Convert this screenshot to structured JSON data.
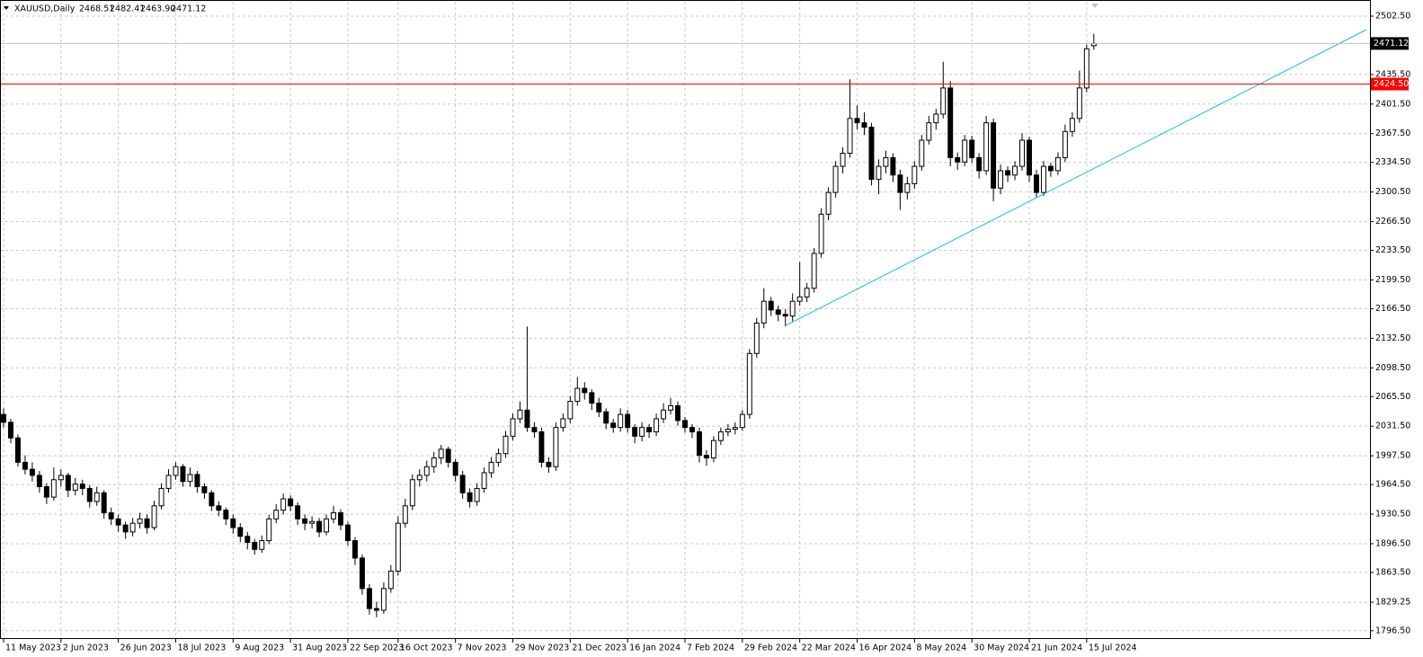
{
  "chart_data": {
    "type": "candlestick",
    "header": {
      "symbol": "XAUUSD,Daily",
      "ohlc": [
        "2468.51",
        "2482.41",
        "2463.90",
        "2471.12"
      ]
    },
    "bull_color": "#ffffff",
    "bear_color": "#000000",
    "outline_color": "#000000",
    "grid": true,
    "xlim": [
      -0.5,
      190.5
    ],
    "xticks": [
      {
        "value": 0,
        "label": "11 May 2023"
      },
      {
        "value": 8,
        "label": "2 Jun 2023"
      },
      {
        "value": 16,
        "label": "26 Jun 2023"
      },
      {
        "value": 24,
        "label": "18 Jul 2023"
      },
      {
        "value": 32,
        "label": "9 Aug 2023"
      },
      {
        "value": 40,
        "label": "31 Aug 2023"
      },
      {
        "value": 48,
        "label": "22 Sep 2023"
      },
      {
        "value": 55,
        "label": "16 Oct 2023"
      },
      {
        "value": 63,
        "label": "7 Nov 2023"
      },
      {
        "value": 71,
        "label": "29 Nov 2023"
      },
      {
        "value": 79,
        "label": "21 Dec 2023"
      },
      {
        "value": 87,
        "label": "16 Jan 2024"
      },
      {
        "value": 95,
        "label": "7 Feb 2024"
      },
      {
        "value": 103,
        "label": "29 Feb 2024"
      },
      {
        "value": 111,
        "label": "22 Mar 2024"
      },
      {
        "value": 119,
        "label": "16 Apr 2024"
      },
      {
        "value": 127,
        "label": "8 May 2024"
      },
      {
        "value": 135,
        "label": "30 May 2024"
      },
      {
        "value": 143,
        "label": "21 Jun 2024"
      },
      {
        "value": 151,
        "label": "15 Jul 2024"
      }
    ],
    "ylim": [
      1787,
      2519
    ],
    "yticks": [
      {
        "value": 2502.5,
        "label": "2502.50"
      },
      {
        "value": 2435.5,
        "label": "2435.50"
      },
      {
        "value": 2401.5,
        "label": "2401.50"
      },
      {
        "value": 2367.5,
        "label": "2367.50"
      },
      {
        "value": 2334.5,
        "label": "2334.50"
      },
      {
        "value": 2300.5,
        "label": "2300.50"
      },
      {
        "value": 2266.5,
        "label": "2266.50"
      },
      {
        "value": 2233.5,
        "label": "2233.50"
      },
      {
        "value": 2199.5,
        "label": "2199.50"
      },
      {
        "value": 2166.5,
        "label": "2166.50"
      },
      {
        "value": 2132.5,
        "label": "2132.50"
      },
      {
        "value": 2098.5,
        "label": "2098.50"
      },
      {
        "value": 2065.5,
        "label": "2065.50"
      },
      {
        "value": 2031.5,
        "label": "2031.50"
      },
      {
        "value": 1997.5,
        "label": "1997.50"
      },
      {
        "value": 1964.5,
        "label": "1964.50"
      },
      {
        "value": 1930.5,
        "label": "1930.50"
      },
      {
        "value": 1896.5,
        "label": "1896.50"
      },
      {
        "value": 1863.5,
        "label": "1863.50"
      },
      {
        "value": 1829.25,
        "label": "1829.25"
      },
      {
        "value": 1796.5,
        "label": "1796.50"
      }
    ],
    "levels": [
      {
        "value": 2424.5,
        "label": "2424.50",
        "color": "#ff0000"
      }
    ],
    "last_price": {
      "value": 2471.12,
      "label": "2471.12",
      "color": "#c0c0c0"
    },
    "trendline": {
      "x": [
        109,
        190
      ],
      "y": [
        2147,
        2487
      ],
      "color": "#1eb4f0"
    },
    "candles": [
      [
        2045,
        2052,
        2030,
        2036
      ],
      [
        2036,
        2040,
        2012,
        2018
      ],
      [
        2018,
        2022,
        1985,
        1990
      ],
      [
        1990,
        1998,
        1976,
        1982
      ],
      [
        1982,
        1990,
        1968,
        1975
      ],
      [
        1975,
        1980,
        1955,
        1962
      ],
      [
        1962,
        1966,
        1942,
        1950
      ],
      [
        1950,
        1984,
        1946,
        1970
      ],
      [
        1970,
        1982,
        1962,
        1975
      ],
      [
        1975,
        1978,
        1950,
        1958
      ],
      [
        1958,
        1972,
        1952,
        1965
      ],
      [
        1965,
        1970,
        1952,
        1960
      ],
      [
        1960,
        1964,
        1938,
        1945
      ],
      [
        1945,
        1962,
        1940,
        1955
      ],
      [
        1955,
        1958,
        1925,
        1932
      ],
      [
        1932,
        1938,
        1918,
        1925
      ],
      [
        1925,
        1930,
        1910,
        1918
      ],
      [
        1918,
        1922,
        1902,
        1910
      ],
      [
        1910,
        1926,
        1905,
        1920
      ],
      [
        1920,
        1932,
        1914,
        1925
      ],
      [
        1925,
        1930,
        1908,
        1915
      ],
      [
        1915,
        1946,
        1912,
        1940
      ],
      [
        1940,
        1966,
        1936,
        1960
      ],
      [
        1960,
        1982,
        1955,
        1975
      ],
      [
        1975,
        1990,
        1970,
        1985
      ],
      [
        1985,
        1988,
        1962,
        1968
      ],
      [
        1968,
        1984,
        1962,
        1976
      ],
      [
        1976,
        1980,
        1955,
        1962
      ],
      [
        1962,
        1966,
        1948,
        1955
      ],
      [
        1955,
        1958,
        1934,
        1940
      ],
      [
        1940,
        1945,
        1928,
        1935
      ],
      [
        1935,
        1938,
        1918,
        1925
      ],
      [
        1925,
        1930,
        1908,
        1915
      ],
      [
        1915,
        1920,
        1898,
        1905
      ],
      [
        1905,
        1910,
        1890,
        1898
      ],
      [
        1898,
        1902,
        1884,
        1890
      ],
      [
        1890,
        1906,
        1886,
        1900
      ],
      [
        1900,
        1930,
        1896,
        1925
      ],
      [
        1925,
        1942,
        1920,
        1935
      ],
      [
        1935,
        1954,
        1930,
        1948
      ],
      [
        1948,
        1952,
        1934,
        1940
      ],
      [
        1940,
        1944,
        1918,
        1925
      ],
      [
        1925,
        1930,
        1912,
        1920
      ],
      [
        1920,
        1928,
        1914,
        1922
      ],
      [
        1922,
        1926,
        1904,
        1910
      ],
      [
        1910,
        1930,
        1906,
        1925
      ],
      [
        1925,
        1940,
        1920,
        1932
      ],
      [
        1932,
        1936,
        1912,
        1918
      ],
      [
        1918,
        1922,
        1894,
        1900
      ],
      [
        1900,
        1904,
        1872,
        1880
      ],
      [
        1880,
        1884,
        1838,
        1845
      ],
      [
        1845,
        1850,
        1815,
        1822
      ],
      [
        1822,
        1830,
        1812,
        1820
      ],
      [
        1820,
        1852,
        1816,
        1845
      ],
      [
        1845,
        1872,
        1840,
        1865
      ],
      [
        1865,
        1928,
        1860,
        1920
      ],
      [
        1920,
        1948,
        1915,
        1940
      ],
      [
        1940,
        1976,
        1935,
        1970
      ],
      [
        1970,
        1982,
        1962,
        1975
      ],
      [
        1975,
        1992,
        1968,
        1985
      ],
      [
        1985,
        2002,
        1978,
        1995
      ],
      [
        1995,
        2010,
        1988,
        2005
      ],
      [
        2005,
        2008,
        1984,
        1990
      ],
      [
        1990,
        1994,
        1968,
        1975
      ],
      [
        1975,
        1980,
        1948,
        1955
      ],
      [
        1955,
        1960,
        1938,
        1945
      ],
      [
        1945,
        1966,
        1940,
        1960
      ],
      [
        1960,
        1984,
        1955,
        1978
      ],
      [
        1978,
        1996,
        1972,
        1990
      ],
      [
        1990,
        2006,
        1985,
        2000
      ],
      [
        2000,
        2026,
        1995,
        2020
      ],
      [
        2020,
        2046,
        2015,
        2040
      ],
      [
        2040,
        2060,
        2035,
        2050
      ],
      [
        2050,
        2146,
        2025,
        2030
      ],
      [
        2030,
        2036,
        2018,
        2025
      ],
      [
        2025,
        2030,
        1984,
        1990
      ],
      [
        1990,
        1996,
        1978,
        1985
      ],
      [
        1985,
        2036,
        1980,
        2030
      ],
      [
        2030,
        2046,
        2025,
        2040
      ],
      [
        2040,
        2066,
        2035,
        2060
      ],
      [
        2060,
        2088,
        2055,
        2075
      ],
      [
        2075,
        2082,
        2062,
        2070
      ],
      [
        2070,
        2074,
        2050,
        2058
      ],
      [
        2058,
        2064,
        2042,
        2048
      ],
      [
        2048,
        2052,
        2028,
        2035
      ],
      [
        2035,
        2040,
        2024,
        2030
      ],
      [
        2030,
        2052,
        2025,
        2045
      ],
      [
        2045,
        2050,
        2024,
        2030
      ],
      [
        2030,
        2034,
        2012,
        2020
      ],
      [
        2020,
        2036,
        2014,
        2030
      ],
      [
        2030,
        2034,
        2018,
        2025
      ],
      [
        2025,
        2046,
        2020,
        2040
      ],
      [
        2040,
        2058,
        2035,
        2050
      ],
      [
        2050,
        2064,
        2045,
        2055
      ],
      [
        2055,
        2060,
        2032,
        2038
      ],
      [
        2038,
        2042,
        2024,
        2030
      ],
      [
        2030,
        2034,
        2018,
        2025
      ],
      [
        2025,
        2030,
        1990,
        1998
      ],
      [
        1998,
        2004,
        1986,
        1995
      ],
      [
        1995,
        2020,
        1990,
        2015
      ],
      [
        2015,
        2030,
        2010,
        2025
      ],
      [
        2025,
        2034,
        2020,
        2028
      ],
      [
        2028,
        2036,
        2022,
        2030
      ],
      [
        2030,
        2050,
        2026,
        2045
      ],
      [
        2045,
        2120,
        2040,
        2115
      ],
      [
        2115,
        2156,
        2110,
        2150
      ],
      [
        2150,
        2190,
        2144,
        2175
      ],
      [
        2175,
        2180,
        2158,
        2165
      ],
      [
        2165,
        2170,
        2152,
        2160
      ],
      [
        2160,
        2166,
        2146,
        2158
      ],
      [
        2158,
        2184,
        2152,
        2175
      ],
      [
        2175,
        2220,
        2170,
        2180
      ],
      [
        2180,
        2196,
        2174,
        2190
      ],
      [
        2190,
        2236,
        2185,
        2230
      ],
      [
        2230,
        2282,
        2225,
        2275
      ],
      [
        2275,
        2306,
        2268,
        2300
      ],
      [
        2300,
        2336,
        2294,
        2330
      ],
      [
        2330,
        2352,
        2322,
        2345
      ],
      [
        2345,
        2430,
        2340,
        2385
      ],
      [
        2385,
        2400,
        2372,
        2380
      ],
      [
        2380,
        2392,
        2366,
        2375
      ],
      [
        2375,
        2380,
        2308,
        2315
      ],
      [
        2315,
        2338,
        2298,
        2330
      ],
      [
        2330,
        2348,
        2322,
        2340
      ],
      [
        2340,
        2345,
        2312,
        2320
      ],
      [
        2320,
        2326,
        2280,
        2300
      ],
      [
        2300,
        2318,
        2292,
        2310
      ],
      [
        2310,
        2336,
        2304,
        2330
      ],
      [
        2330,
        2366,
        2325,
        2360
      ],
      [
        2360,
        2388,
        2355,
        2380
      ],
      [
        2380,
        2396,
        2372,
        2390
      ],
      [
        2390,
        2450,
        2385,
        2420
      ],
      [
        2420,
        2428,
        2330,
        2340
      ],
      [
        2340,
        2346,
        2326,
        2335
      ],
      [
        2335,
        2366,
        2330,
        2360
      ],
      [
        2360,
        2365,
        2334,
        2340
      ],
      [
        2340,
        2345,
        2316,
        2325
      ],
      [
        2325,
        2388,
        2320,
        2380
      ],
      [
        2380,
        2385,
        2290,
        2305
      ],
      [
        2305,
        2332,
        2298,
        2325
      ],
      [
        2325,
        2330,
        2312,
        2320
      ],
      [
        2320,
        2336,
        2314,
        2330
      ],
      [
        2330,
        2368,
        2325,
        2360
      ],
      [
        2360,
        2364,
        2312,
        2320
      ],
      [
        2320,
        2326,
        2294,
        2300
      ],
      [
        2300,
        2336,
        2296,
        2330
      ],
      [
        2330,
        2334,
        2318,
        2325
      ],
      [
        2325,
        2346,
        2320,
        2340
      ],
      [
        2340,
        2378,
        2335,
        2370
      ],
      [
        2370,
        2392,
        2364,
        2385
      ],
      [
        2385,
        2440,
        2380,
        2420
      ],
      [
        2420,
        2470,
        2415,
        2465
      ],
      [
        2468.51,
        2482.41,
        2463.9,
        2471.12
      ]
    ]
  }
}
